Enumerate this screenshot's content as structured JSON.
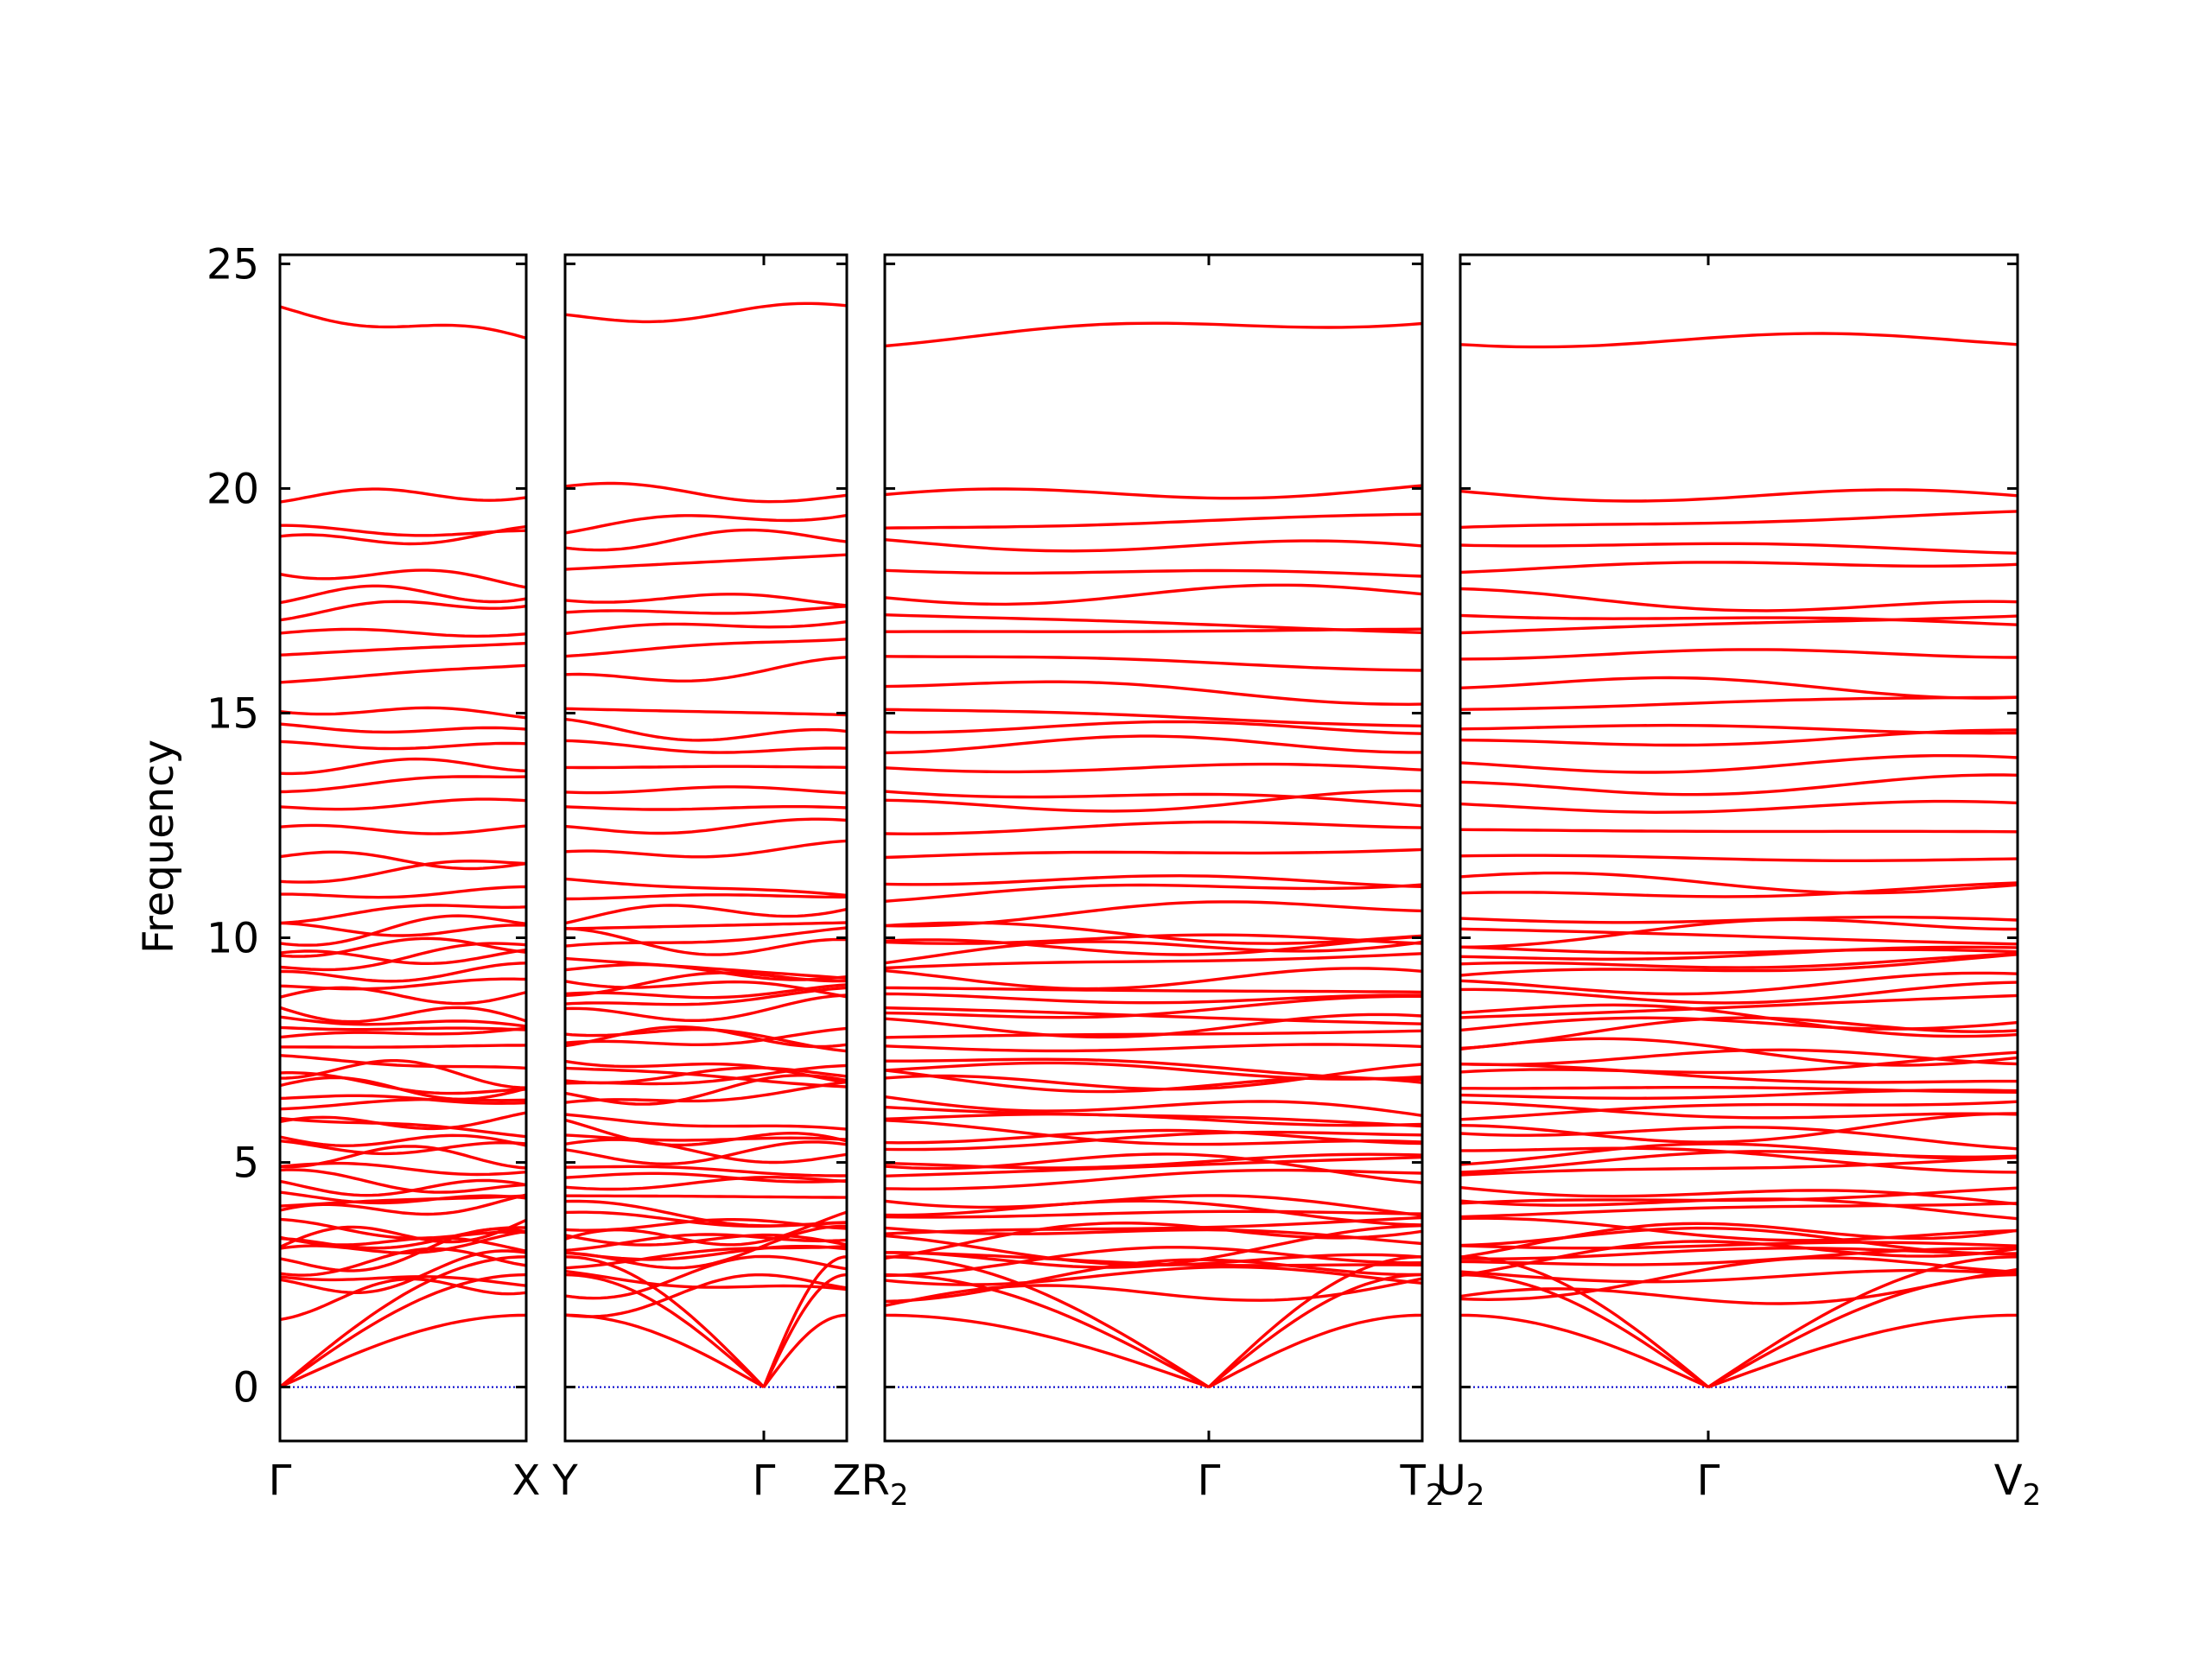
{
  "chart_data": {
    "type": "line",
    "ylabel": "Frequency",
    "ylim": [
      -1.2,
      25.2
    ],
    "yticks": [
      "0",
      "5",
      "10",
      "15",
      "20",
      "25"
    ],
    "zero_line_color": "#0000cc",
    "band_color": "#ff0000",
    "panels": [
      {
        "id": "p1",
        "xticks": [
          "Γ",
          "X"
        ],
        "gamma_end": "start",
        "top_bands": [
          {
            "start": 24.0,
            "end": 23.3
          },
          {
            "start": 19.8,
            "end": 19.9
          }
        ]
      },
      {
        "id": "p2",
        "xticks": [
          "Y",
          "Γ",
          "Z"
        ],
        "gamma_end": "middle",
        "top_bands": [
          {
            "start": 23.8,
            "end": 24.0
          },
          {
            "start": 20.0,
            "end": 19.8
          }
        ]
      },
      {
        "id": "p3",
        "xticks": [
          "R",
          "Γ",
          "T"
        ],
        "gamma_end": "middle",
        "top_bands": [
          {
            "start": 23.3,
            "end": 23.8
          },
          {
            "start": 19.8,
            "end": 20.0
          }
        ]
      },
      {
        "id": "p4",
        "xticks": [
          "U",
          "Γ",
          "V"
        ],
        "gamma_end": "middle",
        "top_bands": [
          {
            "start": 23.3,
            "end": 23.3
          },
          {
            "start": 19.9,
            "end": 19.8
          }
        ]
      }
    ],
    "tick_label_subscripts": {
      "p3": [
        "2",
        "",
        "2"
      ],
      "p4": [
        "2",
        "",
        "2"
      ]
    }
  }
}
